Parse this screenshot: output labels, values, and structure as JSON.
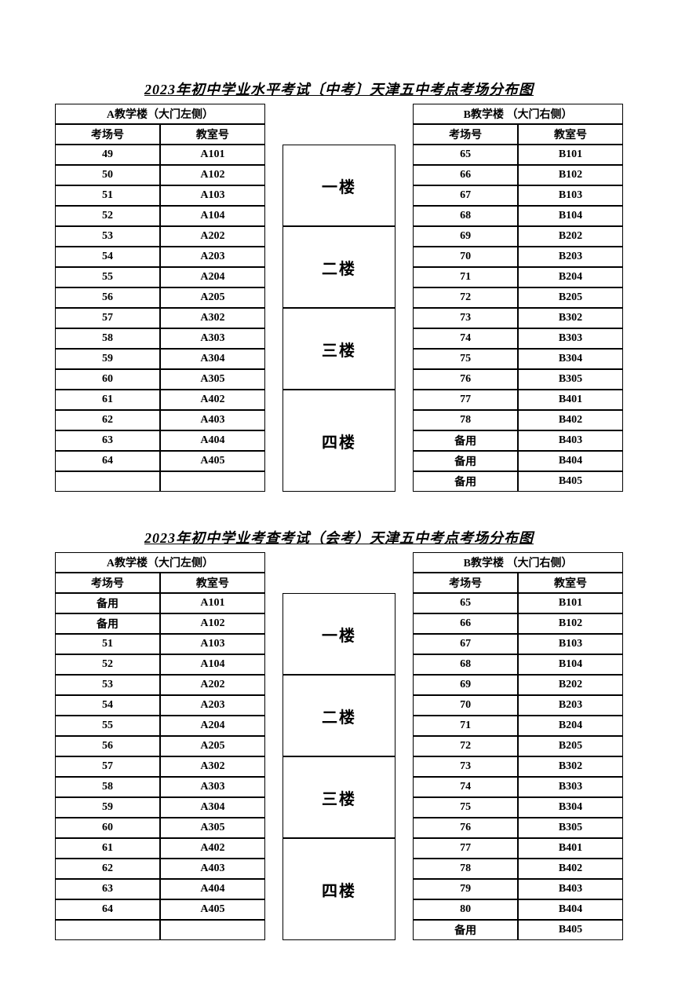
{
  "tables": [
    {
      "title": "2023年初中学业水平考试〔中考〕天津五中考点考场分布图",
      "buildingA": "A教学楼（大门左侧）",
      "buildingB": "B教学楼 （大门右侧）",
      "colA1": "考场号",
      "colA2": "教室号",
      "colB1": "考场号",
      "colB2": "教室号",
      "floors": [
        "一楼",
        "二楼",
        "三楼",
        "四楼"
      ],
      "groups": [
        {
          "A": [
            [
              "49",
              "A101"
            ],
            [
              "50",
              "A102"
            ],
            [
              "51",
              "A103"
            ],
            [
              "52",
              "A104"
            ]
          ],
          "B": [
            [
              "65",
              "B101"
            ],
            [
              "66",
              "B102"
            ],
            [
              "67",
              "B103"
            ],
            [
              "68",
              "B104"
            ]
          ]
        },
        {
          "A": [
            [
              "53",
              "A202"
            ],
            [
              "54",
              "A203"
            ],
            [
              "55",
              "A204"
            ],
            [
              "56",
              "A205"
            ]
          ],
          "B": [
            [
              "69",
              "B202"
            ],
            [
              "70",
              "B203"
            ],
            [
              "71",
              "B204"
            ],
            [
              "72",
              "B205"
            ]
          ]
        },
        {
          "A": [
            [
              "57",
              "A302"
            ],
            [
              "58",
              "A303"
            ],
            [
              "59",
              "A304"
            ],
            [
              "60",
              "A305"
            ]
          ],
          "B": [
            [
              "73",
              "B302"
            ],
            [
              "74",
              "B303"
            ],
            [
              "75",
              "B304"
            ],
            [
              "76",
              "B305"
            ]
          ]
        },
        {
          "A": [
            [
              "61",
              "A402"
            ],
            [
              "62",
              "A403"
            ],
            [
              "63",
              "A404"
            ],
            [
              "64",
              "A405"
            ],
            [
              "",
              ""
            ]
          ],
          "B": [
            [
              "77",
              "B401"
            ],
            [
              "78",
              "B402"
            ],
            [
              "备用",
              "B403"
            ],
            [
              "备用",
              "B404"
            ],
            [
              "备用",
              "B405"
            ]
          ]
        }
      ]
    },
    {
      "title": "2023年初中学业考查考试（会考）天津五中考点考场分布图",
      "buildingA": "A教学楼（大门左侧）",
      "buildingB": "B教学楼 （大门右侧）",
      "colA1": "考场号",
      "colA2": "教室号",
      "colB1": "考场号",
      "colB2": "教室号",
      "floors": [
        "一楼",
        "二楼",
        "三楼",
        "四楼"
      ],
      "groups": [
        {
          "A": [
            [
              "备用",
              "A101"
            ],
            [
              "备用",
              "A102"
            ],
            [
              "51",
              "A103"
            ],
            [
              "52",
              "A104"
            ]
          ],
          "B": [
            [
              "65",
              "B101"
            ],
            [
              "66",
              "B102"
            ],
            [
              "67",
              "B103"
            ],
            [
              "68",
              "B104"
            ]
          ]
        },
        {
          "A": [
            [
              "53",
              "A202"
            ],
            [
              "54",
              "A203"
            ],
            [
              "55",
              "A204"
            ],
            [
              "56",
              "A205"
            ]
          ],
          "B": [
            [
              "69",
              "B202"
            ],
            [
              "70",
              "B203"
            ],
            [
              "71",
              "B204"
            ],
            [
              "72",
              "B205"
            ]
          ]
        },
        {
          "A": [
            [
              "57",
              "A302"
            ],
            [
              "58",
              "A303"
            ],
            [
              "59",
              "A304"
            ],
            [
              "60",
              "A305"
            ]
          ],
          "B": [
            [
              "73",
              "B302"
            ],
            [
              "74",
              "B303"
            ],
            [
              "75",
              "B304"
            ],
            [
              "76",
              "B305"
            ]
          ]
        },
        {
          "A": [
            [
              "61",
              "A402"
            ],
            [
              "62",
              "A403"
            ],
            [
              "63",
              "A404"
            ],
            [
              "64",
              "A405"
            ],
            [
              "",
              ""
            ]
          ],
          "B": [
            [
              "77",
              "B401"
            ],
            [
              "78",
              "B402"
            ],
            [
              "79",
              "B403"
            ],
            [
              "80",
              "B404"
            ],
            [
              "备用",
              "B405"
            ]
          ]
        }
      ]
    }
  ]
}
